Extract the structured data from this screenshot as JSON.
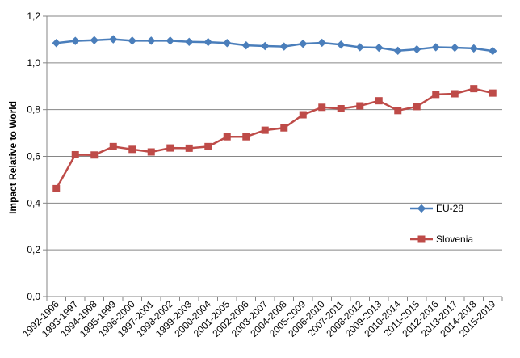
{
  "chart_data": {
    "type": "line",
    "title": "",
    "xlabel": "",
    "ylabel": "Impact Relative to World",
    "ylim": [
      0,
      1.2
    ],
    "yticks": [
      "0,0",
      "0,2",
      "0,4",
      "0,6",
      "0,8",
      "1,0",
      "1,2"
    ],
    "grid": true,
    "legend": "right",
    "categories": [
      "1992-1996",
      "1993-1997",
      "1994-1998",
      "1995-1999",
      "1996-2000",
      "1997-2001",
      "1998-2002",
      "1999-2003",
      "2000-2004",
      "2001-2005",
      "2002-2006",
      "2003-2007",
      "2004-2008",
      "2005-2009",
      "2006-2010",
      "2007-2011",
      "2008-2012",
      "2009-2013",
      "2010-2014",
      "2011-2015",
      "2012-2016",
      "2013-2017",
      "2014-2018",
      "2015-2019"
    ],
    "series": [
      {
        "name": "EU-28",
        "color": "#4a7ebb",
        "marker": "diamond",
        "values": [
          1.085,
          1.094,
          1.097,
          1.101,
          1.095,
          1.095,
          1.095,
          1.09,
          1.089,
          1.085,
          1.075,
          1.072,
          1.07,
          1.082,
          1.086,
          1.078,
          1.067,
          1.065,
          1.052,
          1.058,
          1.067,
          1.065,
          1.062,
          1.051
        ]
      },
      {
        "name": "Slovenia",
        "color": "#be4b48",
        "marker": "square",
        "values": [
          0.462,
          0.607,
          0.606,
          0.642,
          0.63,
          0.619,
          0.636,
          0.635,
          0.642,
          0.684,
          0.684,
          0.712,
          0.722,
          0.778,
          0.81,
          0.804,
          0.816,
          0.838,
          0.796,
          0.813,
          0.865,
          0.868,
          0.89,
          0.871
        ]
      }
    ]
  }
}
